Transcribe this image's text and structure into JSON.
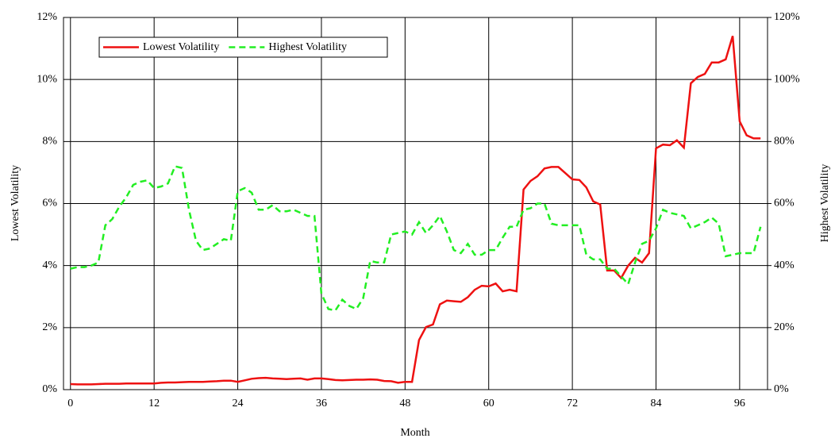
{
  "chart_data": {
    "type": "line",
    "x_label": "Month",
    "y_label": "Lowest Volatility",
    "y2_label": "Highest Volatility",
    "x": [
      0,
      1,
      2,
      3,
      4,
      5,
      6,
      7,
      8,
      9,
      10,
      11,
      12,
      13,
      14,
      15,
      16,
      17,
      18,
      19,
      20,
      21,
      22,
      23,
      24,
      25,
      26,
      27,
      28,
      29,
      30,
      31,
      32,
      33,
      34,
      35,
      36,
      37,
      38,
      39,
      40,
      41,
      42,
      43,
      44,
      45,
      46,
      47,
      48,
      49,
      50,
      51,
      52,
      53,
      54,
      55,
      56,
      57,
      58,
      59,
      60,
      61,
      62,
      63,
      64,
      65,
      66,
      67,
      68,
      69,
      70,
      71,
      72,
      73,
      74,
      75,
      76,
      77,
      78,
      79,
      80,
      81,
      82,
      83,
      84,
      85,
      86,
      87,
      88,
      89,
      90,
      91,
      92,
      93,
      94,
      95,
      96,
      97,
      98,
      99
    ],
    "series": [
      {
        "name": "Lowest Volatility",
        "color": "#ee1111",
        "dashed": false,
        "values": [
          0.18,
          0.17,
          0.17,
          0.17,
          0.18,
          0.19,
          0.19,
          0.19,
          0.2,
          0.2,
          0.2,
          0.2,
          0.2,
          0.22,
          0.23,
          0.23,
          0.24,
          0.25,
          0.25,
          0.25,
          0.26,
          0.27,
          0.29,
          0.29,
          0.25,
          0.3,
          0.35,
          0.37,
          0.38,
          0.36,
          0.35,
          0.34,
          0.35,
          0.36,
          0.32,
          0.36,
          0.36,
          0.34,
          0.31,
          0.3,
          0.31,
          0.32,
          0.32,
          0.33,
          0.32,
          0.28,
          0.27,
          0.22,
          0.25,
          0.25,
          1.6,
          2.02,
          2.1,
          2.75,
          2.87,
          2.85,
          2.83,
          2.98,
          3.22,
          3.35,
          3.33,
          3.42,
          3.17,
          3.22,
          3.17,
          6.45,
          6.73,
          6.88,
          7.13,
          7.18,
          7.18,
          6.98,
          6.78,
          6.76,
          6.52,
          6.07,
          5.97,
          3.84,
          3.84,
          3.6,
          4.0,
          4.25,
          4.1,
          4.4,
          7.78,
          7.9,
          7.88,
          8.04,
          7.8,
          9.88,
          10.08,
          10.18,
          10.55,
          10.55,
          10.65,
          11.4,
          8.65,
          8.2,
          8.1,
          8.1
        ]
      },
      {
        "name": "Highest Volatility",
        "color": "#22ee22",
        "dashed": true,
        "axis": "y2",
        "values": [
          39,
          39.5,
          39.5,
          40,
          41,
          53,
          55,
          59,
          62,
          66,
          67,
          67.5,
          65,
          65.5,
          66.5,
          72,
          71.5,
          58,
          48,
          45,
          45.5,
          47,
          48.5,
          48,
          64,
          65,
          63.5,
          58,
          58,
          59.5,
          57.5,
          57.5,
          58,
          57,
          56,
          56,
          31,
          26,
          25.5,
          29,
          27,
          26,
          29.5,
          41.5,
          41,
          41,
          50,
          50.5,
          51,
          50,
          54,
          50.5,
          53,
          56,
          51,
          45,
          44,
          47,
          43.5,
          43.5,
          45,
          45,
          49,
          52.5,
          52.5,
          58,
          58.5,
          60,
          60,
          53.5,
          53,
          53,
          53,
          53,
          43.5,
          42,
          42,
          39,
          39,
          36.5,
          34,
          41,
          47,
          48,
          52,
          58,
          57,
          56.5,
          56,
          52,
          53,
          54,
          55.5,
          53.5,
          43,
          43.5,
          44,
          44,
          44,
          52.5
        ]
      }
    ],
    "xlim": [
      -1,
      100
    ],
    "xticks": [
      0,
      12,
      24,
      36,
      48,
      60,
      72,
      84,
      96
    ],
    "ylim": [
      0,
      12
    ],
    "yticks": [
      {
        "value": 0,
        "label": "0%"
      },
      {
        "value": 2,
        "label": "2%"
      },
      {
        "value": 4,
        "label": "4%"
      },
      {
        "value": 6,
        "label": "6%"
      },
      {
        "value": 8,
        "label": "8%"
      },
      {
        "value": 10,
        "label": "10%"
      },
      {
        "value": 12,
        "label": "12%"
      }
    ],
    "y2lim": [
      0,
      120
    ],
    "y2ticks": [
      {
        "value": 0,
        "label": "0%"
      },
      {
        "value": 20,
        "label": "20%"
      },
      {
        "value": 40,
        "label": "40%"
      },
      {
        "value": 60,
        "label": "60%"
      },
      {
        "value": 80,
        "label": "80%"
      },
      {
        "value": 100,
        "label": "100%"
      },
      {
        "value": 120,
        "label": "120%"
      }
    ],
    "grid": true,
    "legend": "top-left"
  }
}
